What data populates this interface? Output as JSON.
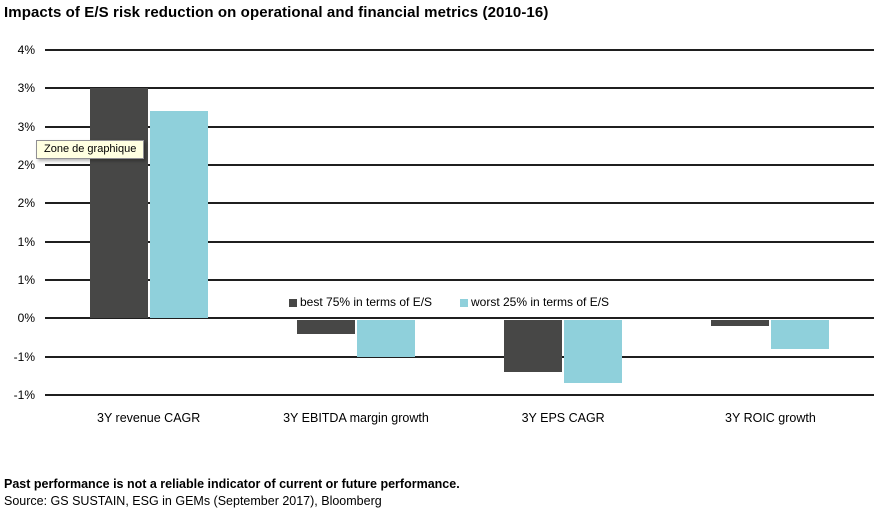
{
  "page": {
    "title": "Impacts of E/S risk reduction on operational and financial metrics (2010-16)"
  },
  "tooltip": {
    "text": "Zone de graphique"
  },
  "footer": {
    "disclaimer": "Past performance is not a reliable indicator of current or future performance.",
    "source": "Source: GS SUSTAIN, ESG in GEMs (September 2017), Bloomberg"
  },
  "colors": {
    "best_series": "#474746",
    "worst_series": "#8fd0db",
    "gridline": "#1f1f1f",
    "tooltip_bg": "#ffffe1",
    "tooltip_border": "#908f94"
  },
  "chart_data": {
    "type": "bar",
    "title": "Impacts of E/S risk reduction on operational and financial metrics (2010-16)",
    "categories": [
      "3Y revenue CAGR",
      "3Y EBITDA margin growth",
      "3Y EPS CAGR",
      "3Y ROIC growth"
    ],
    "series": [
      {
        "name": "best 75% in terms of E/S",
        "color": "#474746",
        "values": [
          3.0,
          -0.2,
          -0.7,
          -0.1
        ]
      },
      {
        "name": "worst 25% in terms of E/S",
        "color": "#8fd0db",
        "values": [
          2.7,
          -0.5,
          -0.85,
          -0.4
        ]
      }
    ],
    "ylabel": "",
    "xlabel": "",
    "ylim": [
      -1.0,
      3.5
    ],
    "gridline_step": 0.5,
    "grid": true,
    "ytick_values": [
      3.5,
      3.0,
      2.5,
      2.0,
      1.5,
      1.0,
      0.5,
      0.0,
      -0.5,
      -1.0
    ],
    "ytick_labels": [
      "4%",
      "3%",
      "3%",
      "2%",
      "2%",
      "1%",
      "1%",
      "0%",
      "-1%",
      "-1%"
    ],
    "legend_position": "inside-bottom-center"
  }
}
